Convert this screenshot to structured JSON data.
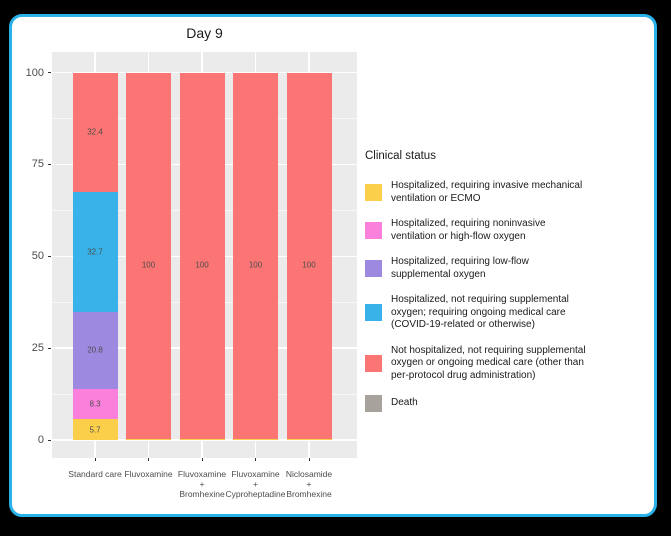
{
  "window": {
    "background_color": "#000000",
    "card_background": "#ffffff",
    "card_border_color": "#29b2e9"
  },
  "chart_data": {
    "type": "bar",
    "stacked": true,
    "title": "Day 9",
    "xlabel": "",
    "ylabel": "",
    "ylim": [
      0,
      100
    ],
    "yticks": [
      0,
      25,
      50,
      75,
      100
    ],
    "yminor": [
      12.5,
      37.5,
      62.5,
      87.5
    ],
    "grid": true,
    "panel_background": "#ebebeb",
    "gridline_color": "#ffffff",
    "legend_position": "right",
    "legend_title": "Clinical status",
    "categories": [
      {
        "label": "Standard care",
        "lines": [
          "Standard care"
        ]
      },
      {
        "label": "Fluvoxamine",
        "lines": [
          "Fluvoxamine"
        ]
      },
      {
        "label": "Fluvoxamine + Bromhexine",
        "lines": [
          "Fluvoxamine",
          "+",
          "Bromhexine"
        ]
      },
      {
        "label": "Fluvoxamine + Cyproheptadine",
        "lines": [
          "Fluvoxamine",
          "+",
          "Cyproheptadine"
        ]
      },
      {
        "label": "Niclosamide + Bromhexine",
        "lines": [
          "Niclosamide",
          "+",
          "Bromhexine"
        ]
      }
    ],
    "series": [
      {
        "name": "Hospitalized, requiring invasive mechanical ventilation or ECMO",
        "legend_lines": [
          "Hospitalized, requiring invasive mechanical",
          "ventilation or ECMO"
        ],
        "color": "#fccf4b",
        "values": [
          5.7,
          0.4,
          0.4,
          0.4,
          0.4
        ],
        "labels": [
          "5.7",
          "",
          "",
          "",
          ""
        ]
      },
      {
        "name": "Hospitalized, requiring noninvasive ventilation or high-flow oxygen",
        "legend_lines": [
          "Hospitalized, requiring noninvasive",
          "ventilation or high-flow oxygen"
        ],
        "color": "#fb80dc",
        "values": [
          8.3,
          0,
          0,
          0,
          0
        ],
        "labels": [
          "8.3",
          "",
          "",
          "",
          ""
        ]
      },
      {
        "name": "Hospitalized, requiring low-flow supplemental oxygen",
        "legend_lines": [
          "Hospitalized, requiring low-flow",
          "supplemental oxygen"
        ],
        "color": "#9d89e0",
        "values": [
          20.8,
          0,
          0,
          0,
          0
        ],
        "labels": [
          "20.8",
          "",
          "",
          "",
          ""
        ]
      },
      {
        "name": "Hospitalized, not requiring supplemental oxygen; requiring ongoing medical care (COVID-19-related or otherwise)",
        "legend_lines": [
          "Hospitalized, not requiring supplemental",
          "oxygen; requiring ongoing medical care",
          "(COVID-19-related or otherwise)"
        ],
        "color": "#38b2e8",
        "values": [
          32.7,
          0,
          0,
          0,
          0
        ],
        "labels": [
          "32.7",
          "",
          "",
          "",
          ""
        ]
      },
      {
        "name": "Not hospitalized, not requiring supplemental oxygen or ongoing medical care (other than per-protocol drug administration)",
        "legend_lines": [
          "Not hospitalized, not requiring supplemental",
          "oxygen or ongoing medical care (other than",
          "per-protocol drug administration)"
        ],
        "color": "#fa7573",
        "values": [
          32.4,
          99.6,
          99.6,
          99.6,
          99.6
        ],
        "labels": [
          "32.4",
          "100",
          "100",
          "100",
          "100"
        ]
      },
      {
        "name": "Death",
        "legend_lines": [
          "Death"
        ],
        "color": "#a8a29d",
        "values": [
          0,
          0,
          0,
          0,
          0
        ],
        "labels": [
          "",
          "",
          "",
          "",
          ""
        ]
      }
    ],
    "value_label_color": "#4d4d4d"
  }
}
